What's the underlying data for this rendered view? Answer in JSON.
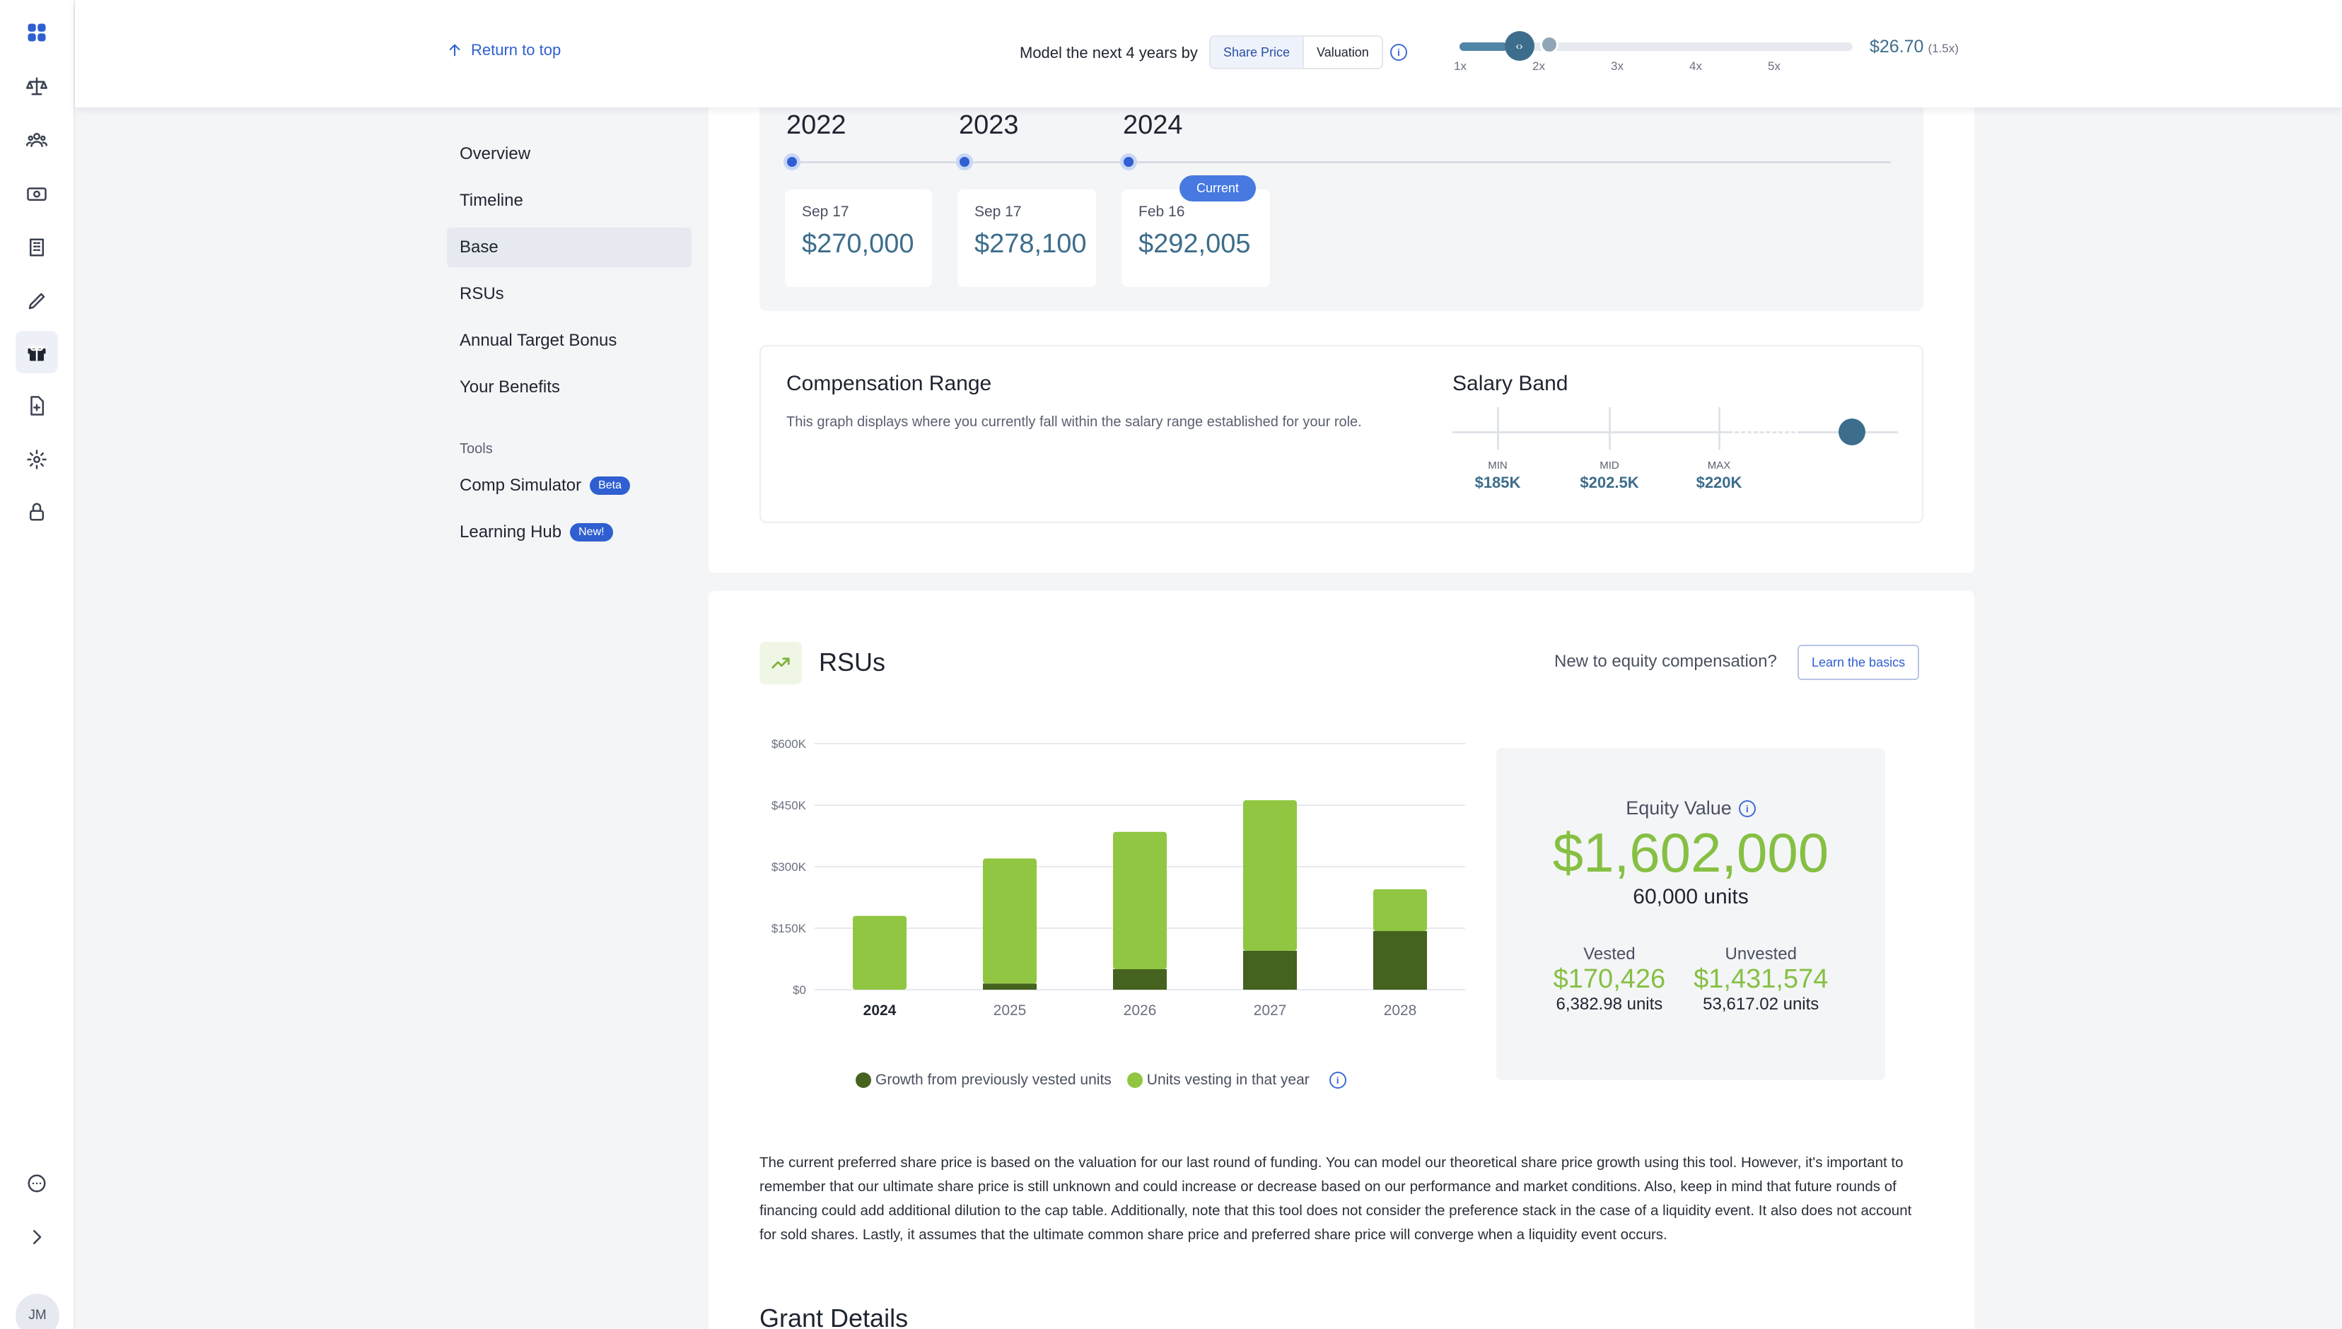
{
  "rail": {
    "icons": [
      "apps-icon",
      "scale-icon",
      "team-icon",
      "money-icon",
      "building-icon",
      "pen-icon",
      "gift-icon",
      "document-add-icon",
      "settings-icon",
      "lock-icon",
      "chat-icon",
      "chevron-right-icon"
    ],
    "active": "gift-icon",
    "avatar": "JM"
  },
  "topbar": {
    "return_label": "Return to top",
    "model_label": "Model the next 4 years by",
    "toggle": [
      "Share Price",
      "Valuation"
    ],
    "toggle_selected": "Share Price",
    "slider": {
      "multiplier": 1.5,
      "range": [
        1,
        5
      ],
      "ticks": [
        "1x",
        "2x",
        "3x",
        "4x",
        "5x"
      ]
    },
    "share_price": "$26.70",
    "share_multiplier": "(1.5x)"
  },
  "subnav": {
    "items": [
      "Overview",
      "Timeline",
      "Base",
      "RSUs",
      "Annual Target Bonus",
      "Your Benefits"
    ],
    "active": "Base",
    "tools_heading": "Tools",
    "tools": [
      {
        "label": "Comp Simulator",
        "badge": "Beta"
      },
      {
        "label": "Learning Hub",
        "badge": "New!"
      }
    ]
  },
  "base": {
    "years": [
      "2022",
      "2023",
      "2024"
    ],
    "salaries": [
      {
        "date": "Sep 17",
        "amount": "$270,000"
      },
      {
        "date": "Sep 17",
        "amount": "$278,100"
      },
      {
        "date": "Feb 16",
        "amount": "$292,005"
      }
    ],
    "current_label": "Current"
  },
  "comp_range": {
    "title": "Compensation Range",
    "description": "This graph displays where you currently fall within the salary range established for your role.",
    "band_title": "Salary Band",
    "band": [
      {
        "label": "MIN",
        "value": "$185K"
      },
      {
        "label": "MID",
        "value": "$202.5K"
      },
      {
        "label": "MAX",
        "value": "$220K"
      }
    ]
  },
  "rsus": {
    "title": "RSUs",
    "prompt": "New to equity compensation?",
    "learn_button": "Learn the basics",
    "legend": [
      "Growth from previously vested units",
      "Units vesting in that year"
    ],
    "equity": {
      "label": "Equity Value",
      "value": "$1,602,000",
      "units": "60,000 units",
      "vested_label": "Vested",
      "vested_value": "$170,426",
      "vested_units": "6,382.98 units",
      "unvested_label": "Unvested",
      "unvested_value": "$1,431,574",
      "unvested_units": "53,617.02 units"
    },
    "disclaimer": "The current preferred share price is based on the valuation for our last round of funding. You can model our theoretical share price growth using this tool. However, it's important to remember that our ultimate share price is still unknown and could increase or decrease based on our performance and market conditions. Also, keep in mind that future rounds of financing could add additional dilution to the cap table. Additionally, note that this tool does not consider the preference stack in the case of a liquidity event. It also does not account for sold shares. Lastly, it assumes that the ultimate common share price and preferred share price will converge when a liquidity event occurs.",
    "grant_title": "Grant Details"
  },
  "chart_data": {
    "type": "bar",
    "stacked": true,
    "categories": [
      "2024",
      "2025",
      "2026",
      "2027",
      "2028"
    ],
    "highlight_category": "2024",
    "series": [
      {
        "name": "Growth from previously vested units",
        "color": "#45621f",
        "values": [
          0,
          15000,
          50000,
          95000,
          143000
        ]
      },
      {
        "name": "Units vesting in that year",
        "color": "#90c641",
        "values": [
          180000,
          305000,
          335000,
          367000,
          102000
        ]
      }
    ],
    "yticks": [
      "$0",
      "$150K",
      "$300K",
      "$450K",
      "$600K"
    ],
    "ylim": [
      0,
      600000
    ],
    "grid": true,
    "legend_position": "bottom"
  }
}
